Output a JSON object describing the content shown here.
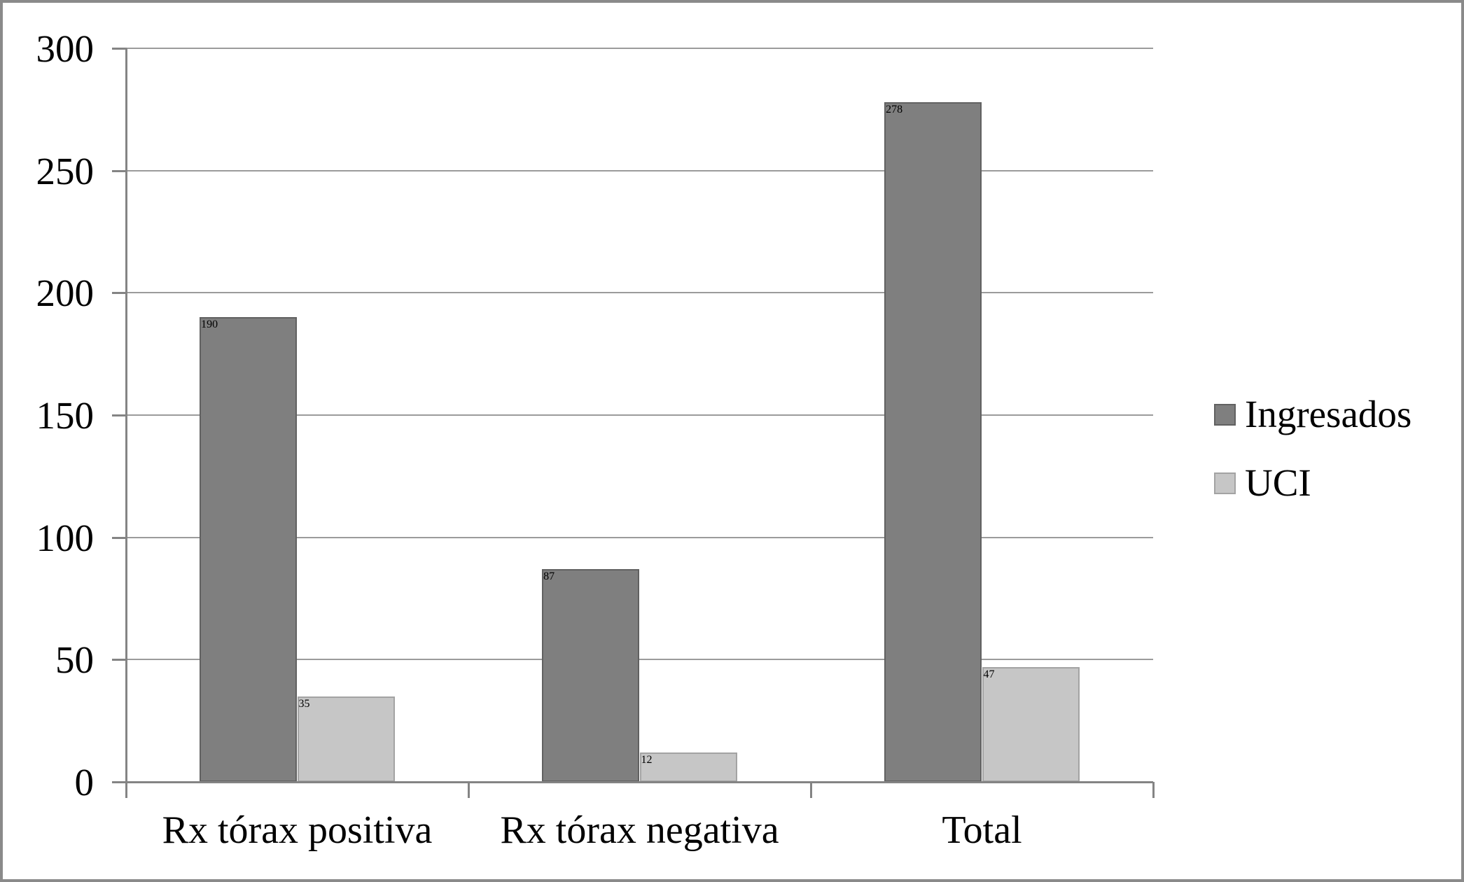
{
  "chart_data": {
    "type": "bar",
    "title": "",
    "xlabel": "",
    "ylabel": "",
    "categories": [
      "Rx tórax positiva",
      "Rx tórax negativa",
      "Total"
    ],
    "series": [
      {
        "name": "Ingresados",
        "values": [
          190,
          87,
          278
        ],
        "color": "#7f7f7f",
        "border_color": "#616161"
      },
      {
        "name": "UCI",
        "values": [
          35,
          12,
          47
        ],
        "color": "#c6c6c6",
        "border_color": "#a3a3a3"
      }
    ],
    "ylim": [
      0,
      300
    ],
    "ytick_step": 50,
    "yticks": [
      0,
      50,
      100,
      150,
      200,
      250,
      300
    ],
    "grid": true,
    "legend_position": "right",
    "style": {
      "grid_color": "#9b9b9b",
      "axis_color": "#848484",
      "background": "#ffffff",
      "frame_border_color": "#8a8a8a"
    }
  }
}
